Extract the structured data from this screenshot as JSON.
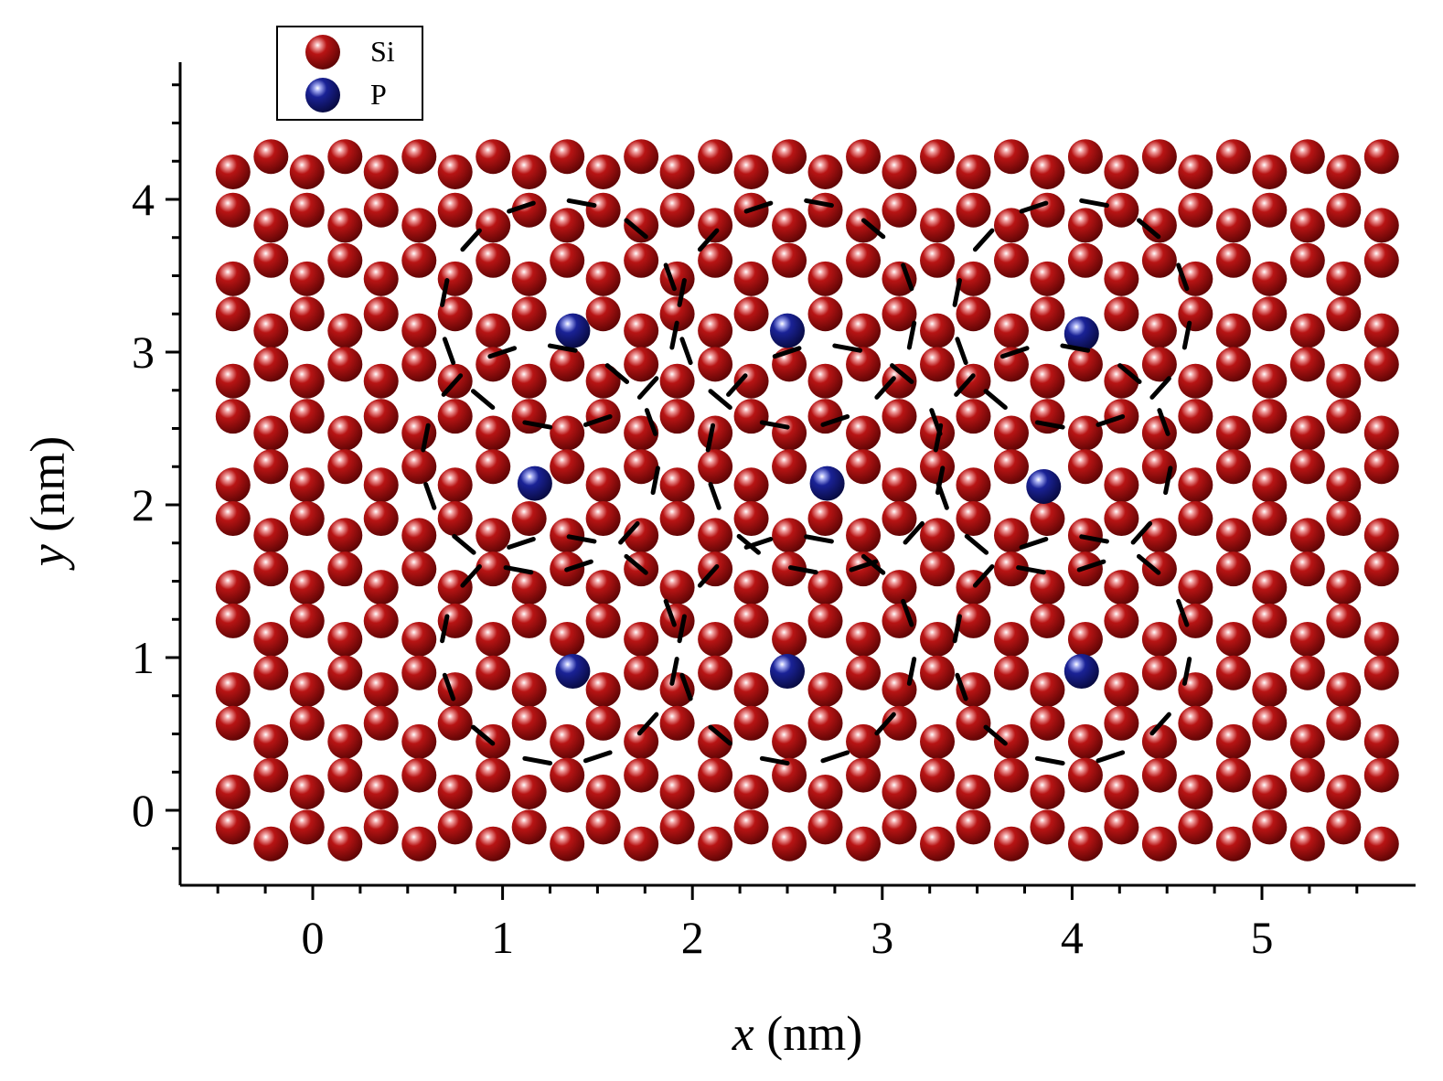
{
  "chart_data": {
    "type": "scatter",
    "title": "",
    "xlabel": {
      "italic": "x",
      "unit": " (nm)"
    },
    "ylabel": {
      "italic": "y",
      "unit": " (nm)"
    },
    "xlim": [
      -0.75,
      5.8
    ],
    "ylim": [
      -0.5,
      4.9
    ],
    "x_ticks": [
      0,
      1,
      2,
      3,
      4,
      5
    ],
    "y_ticks": [
      0,
      1,
      2,
      3,
      4
    ],
    "grid": false,
    "legend_position": "top-left",
    "legend": [
      {
        "label": "Si",
        "color": "#a80c0c"
      },
      {
        "label": "P",
        "color": "#141a8a"
      }
    ],
    "lattice": {
      "description_free": true,
      "si_rows": [
        {
          "y": 4.28,
          "x_start": -0.22,
          "x_step": 0.39,
          "count": 16
        },
        {
          "y": 4.18,
          "x_start": -0.42,
          "x_step": 0.39,
          "count": 16
        },
        {
          "y": 3.93,
          "x_start": -0.42,
          "x_step": 0.39,
          "count": 16
        },
        {
          "y": 3.83,
          "x_start": -0.22,
          "x_step": 0.39,
          "count": 16
        },
        {
          "y": 3.6,
          "x_start": -0.22,
          "x_step": 0.39,
          "count": 16
        },
        {
          "y": 3.48,
          "x_start": -0.42,
          "x_step": 0.39,
          "count": 16
        },
        {
          "y": 3.25,
          "x_start": -0.42,
          "x_step": 0.39,
          "count": 16
        },
        {
          "y": 3.14,
          "x_start": -0.22,
          "x_step": 0.39,
          "count": 16
        },
        {
          "y": 2.92,
          "x_start": -0.22,
          "x_step": 0.39,
          "count": 16
        },
        {
          "y": 2.81,
          "x_start": -0.42,
          "x_step": 0.39,
          "count": 16
        },
        {
          "y": 2.58,
          "x_start": -0.42,
          "x_step": 0.39,
          "count": 16
        },
        {
          "y": 2.47,
          "x_start": -0.22,
          "x_step": 0.39,
          "count": 16
        },
        {
          "y": 2.25,
          "x_start": -0.22,
          "x_step": 0.39,
          "count": 16
        },
        {
          "y": 2.13,
          "x_start": -0.42,
          "x_step": 0.39,
          "count": 16
        },
        {
          "y": 1.91,
          "x_start": -0.42,
          "x_step": 0.39,
          "count": 16
        },
        {
          "y": 1.8,
          "x_start": -0.22,
          "x_step": 0.39,
          "count": 16
        },
        {
          "y": 1.58,
          "x_start": -0.22,
          "x_step": 0.39,
          "count": 16
        },
        {
          "y": 1.46,
          "x_start": -0.42,
          "x_step": 0.39,
          "count": 16
        },
        {
          "y": 1.24,
          "x_start": -0.42,
          "x_step": 0.39,
          "count": 16
        },
        {
          "y": 1.12,
          "x_start": -0.22,
          "x_step": 0.39,
          "count": 16
        },
        {
          "y": 0.9,
          "x_start": -0.22,
          "x_step": 0.39,
          "count": 16
        },
        {
          "y": 0.79,
          "x_start": -0.42,
          "x_step": 0.39,
          "count": 16
        },
        {
          "y": 0.57,
          "x_start": -0.42,
          "x_step": 0.39,
          "count": 16
        },
        {
          "y": 0.45,
          "x_start": -0.22,
          "x_step": 0.39,
          "count": 16
        },
        {
          "y": 0.23,
          "x_start": -0.22,
          "x_step": 0.39,
          "count": 16
        },
        {
          "y": 0.12,
          "x_start": -0.42,
          "x_step": 0.39,
          "count": 16
        },
        {
          "y": -0.11,
          "x_start": -0.42,
          "x_step": 0.39,
          "count": 16
        },
        {
          "y": -0.22,
          "x_start": -0.22,
          "x_step": 0.39,
          "count": 16
        }
      ]
    },
    "series": [
      {
        "name": "P",
        "points": [
          {
            "x": 1.37,
            "y": 3.14
          },
          {
            "x": 2.5,
            "y": 3.14
          },
          {
            "x": 4.05,
            "y": 3.12
          },
          {
            "x": 1.17,
            "y": 2.14
          },
          {
            "x": 2.71,
            "y": 2.14
          },
          {
            "x": 3.85,
            "y": 2.12
          },
          {
            "x": 1.37,
            "y": 0.91
          },
          {
            "x": 2.5,
            "y": 0.91
          },
          {
            "x": 4.05,
            "y": 0.91
          }
        ]
      }
    ],
    "dashed_rings": [
      {
        "cx": 1.3,
        "cy": 3.25,
        "r": 0.62
      },
      {
        "cx": 2.55,
        "cy": 3.25,
        "r": 0.62
      },
      {
        "cx": 4.0,
        "cy": 3.25,
        "r": 0.62
      },
      {
        "cx": 1.2,
        "cy": 2.3,
        "r": 0.62
      },
      {
        "cx": 2.7,
        "cy": 2.3,
        "r": 0.62
      },
      {
        "cx": 3.9,
        "cy": 2.3,
        "r": 0.62
      },
      {
        "cx": 1.3,
        "cy": 1.05,
        "r": 0.62
      },
      {
        "cx": 2.55,
        "cy": 1.05,
        "r": 0.62
      },
      {
        "cx": 4.0,
        "cy": 1.05,
        "r": 0.62
      }
    ]
  }
}
